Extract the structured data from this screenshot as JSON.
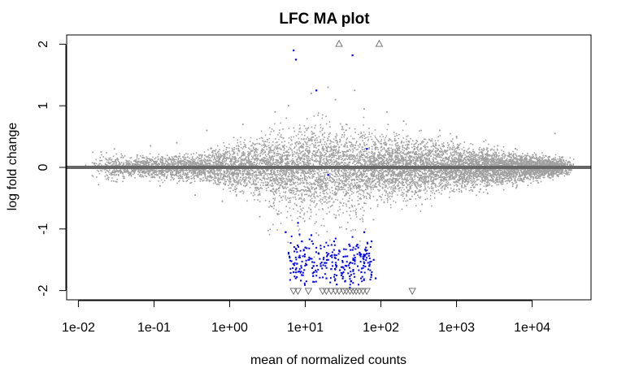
{
  "chart_data": {
    "type": "scatter",
    "title": "LFC MA plot",
    "xlabel": "mean of normalized counts",
    "ylabel": "log fold change",
    "x_scale": "log10",
    "xlim": [
      0.007,
      60000
    ],
    "ylim": [
      -2.15,
      2.15
    ],
    "x_ticks": [
      0.01,
      0.1,
      1,
      10,
      100,
      1000,
      10000
    ],
    "x_tick_labels": [
      "1e-02",
      "1e-01",
      "1e+00",
      "1e+01",
      "1e+02",
      "1e+03",
      "1e+04"
    ],
    "y_ticks": [
      -2,
      -1,
      0,
      1,
      2
    ],
    "y_tick_labels": [
      "-2",
      "-1",
      "0",
      "1",
      "2"
    ],
    "reference_line": {
      "y": 0,
      "color": "#666666"
    },
    "grid": false,
    "series": [
      {
        "role": "not significant",
        "color": "#999999",
        "marker": "point",
        "points": [
          [
            0.02,
            0.25
          ],
          [
            0.03,
            0.3
          ],
          [
            0.04,
            -0.15
          ],
          [
            0.06,
            0.2
          ],
          [
            0.09,
            0.35
          ],
          [
            0.12,
            -0.3
          ],
          [
            0.2,
            0.4
          ],
          [
            0.35,
            -0.45
          ],
          [
            0.5,
            0.6
          ],
          [
            0.8,
            -0.55
          ],
          [
            1.5,
            0.7
          ],
          [
            2.5,
            -0.8
          ],
          [
            4,
            0.9
          ],
          [
            6,
            1.0
          ],
          [
            8,
            -0.95
          ],
          [
            12,
            1.2
          ],
          [
            15,
            -1.1
          ],
          [
            20,
            1.3
          ],
          [
            25,
            1.1
          ],
          [
            35,
            -1.0
          ],
          [
            45,
            1.25
          ],
          [
            60,
            0.95
          ],
          [
            80,
            -0.85
          ],
          [
            120,
            0.9
          ],
          [
            200,
            0.75
          ],
          [
            350,
            -0.6
          ],
          [
            600,
            0.6
          ],
          [
            1000,
            0.5
          ],
          [
            2000,
            -0.4
          ],
          [
            3500,
            0.35
          ],
          [
            6000,
            0.3
          ],
          [
            12000,
            -0.25
          ],
          [
            20000,
            0.55
          ],
          [
            35000,
            0.05
          ]
        ]
      },
      {
        "role": "significant",
        "color": "#0000ee",
        "marker": "point",
        "points": [
          [
            7,
            1.9
          ],
          [
            7.5,
            1.75
          ],
          [
            14,
            1.25
          ],
          [
            42,
            1.82
          ],
          [
            20,
            -0.12
          ],
          [
            65,
            0.3
          ],
          [
            8,
            -0.9
          ],
          [
            9,
            -1.2
          ],
          [
            10,
            -1.3
          ],
          [
            11,
            -1.5
          ],
          [
            12,
            -1.1
          ],
          [
            13,
            -1.7
          ],
          [
            15,
            -1.4
          ],
          [
            16,
            -1.6
          ],
          [
            18,
            -1.55
          ],
          [
            19,
            -1.8
          ],
          [
            20,
            -1.5
          ],
          [
            22,
            -1.65
          ],
          [
            24,
            -1.2
          ],
          [
            26,
            -1.9
          ],
          [
            28,
            -1.35
          ],
          [
            30,
            -1.75
          ],
          [
            32,
            -1.45
          ],
          [
            35,
            -1.6
          ],
          [
            38,
            -1.25
          ],
          [
            40,
            -1.85
          ],
          [
            45,
            -1.5
          ],
          [
            50,
            -1.3
          ],
          [
            55,
            -1.7
          ],
          [
            60,
            -1.05
          ],
          [
            65,
            -1.4
          ],
          [
            70,
            -1.6
          ],
          [
            75,
            -1.2
          ],
          [
            80,
            -1.5
          ],
          [
            85,
            -1.8
          ],
          [
            6,
            -1.4
          ],
          [
            7,
            -1.7
          ],
          [
            5.5,
            -1.05
          ]
        ]
      },
      {
        "role": "out of range (clipped)",
        "color": "#666666",
        "marker": "triangle",
        "points": [
          [
            28,
            2
          ],
          [
            95,
            2
          ],
          [
            7,
            -2
          ],
          [
            8,
            -2
          ],
          [
            11,
            -2
          ],
          [
            17,
            -2
          ],
          [
            19,
            -2
          ],
          [
            22,
            -2
          ],
          [
            25,
            -2
          ],
          [
            28,
            -2
          ],
          [
            32,
            -2
          ],
          [
            35,
            -2
          ],
          [
            39,
            -2
          ],
          [
            43,
            -2
          ],
          [
            47,
            -2
          ],
          [
            52,
            -2
          ],
          [
            58,
            -2
          ],
          [
            65,
            -2
          ],
          [
            260,
            -2
          ]
        ]
      }
    ]
  }
}
